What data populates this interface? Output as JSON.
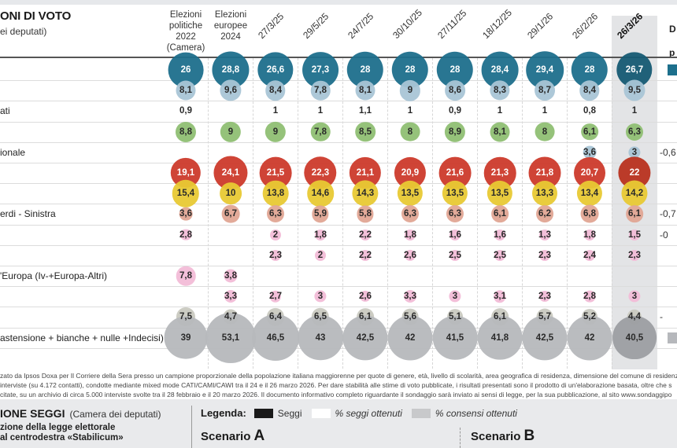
{
  "header": {
    "title": "ONI DI VOTO",
    "subtitle": "ei deputati)",
    "static_columns": [
      {
        "lines": [
          "Elezioni",
          "politiche",
          "2022",
          "(Camera)"
        ]
      },
      {
        "lines": [
          "Elezioni",
          "europee",
          "2024"
        ]
      }
    ],
    "date_columns": [
      "27/3/25",
      "29/5/25",
      "24/7/25",
      "30/10/25",
      "27/11/25",
      "18/12/25",
      "29/1/26",
      "26/2/26",
      "26/3/26"
    ],
    "highlighted_column": "26/3/26",
    "diff_header": [
      "D",
      "p"
    ]
  },
  "colors": {
    "fdi": "#1d6f8c",
    "fi": "#a9c5d6",
    "lega": "#8fbf73",
    "fn": "#a9c5d6",
    "pd": "#cc3a2b",
    "m5s": "#e8c934",
    "avs": "#e0a593",
    "small": "#f2bcd7",
    "altri": "#c9c9c0",
    "nonvoto": "#b6b8bc",
    "highlight_bg": "#e3e4e6"
  },
  "chart_data": {
    "type": "table",
    "title": "INTENZIONI DI VOTO (Camera dei deputati)",
    "columns": [
      "Elezioni politiche 2022 (Camera)",
      "Elezioni europee 2024",
      "27/3/25",
      "29/5/25",
      "24/7/25",
      "30/10/25",
      "27/11/25",
      "18/12/25",
      "29/1/26",
      "26/2/26",
      "26/3/26"
    ],
    "rows": [
      {
        "label": "",
        "color_key": "fdi",
        "values": [
          26,
          28.8,
          26.6,
          27.3,
          28,
          28,
          28,
          28.4,
          29.4,
          28,
          26.7
        ],
        "diff": "–"
      },
      {
        "label": "",
        "color_key": "fi",
        "values": [
          8.1,
          9.6,
          8.4,
          7.8,
          8.1,
          9,
          8.6,
          8.3,
          8.7,
          8.4,
          9.5
        ],
        "diff": ""
      },
      {
        "label": "ati",
        "color_key": "none",
        "values": [
          0.9,
          null,
          1,
          1,
          1.1,
          1,
          0.9,
          1,
          1,
          0.8,
          1
        ],
        "diff": ""
      },
      {
        "label": "",
        "color_key": "lega",
        "values": [
          8.8,
          9,
          9,
          7.8,
          8.5,
          8,
          8.9,
          8.1,
          8,
          6.1,
          6.3
        ],
        "diff": ""
      },
      {
        "label": "ionale",
        "color_key": "fn",
        "values": [
          null,
          null,
          null,
          null,
          null,
          null,
          null,
          null,
          null,
          3.6,
          3
        ],
        "diff": "-0,6"
      },
      {
        "label": "",
        "color_key": "pd",
        "values": [
          19.1,
          24.1,
          21.5,
          22.3,
          21.1,
          20.9,
          21.6,
          21.3,
          21.8,
          20.7,
          22
        ],
        "diff": ""
      },
      {
        "label": "",
        "color_key": "m5s",
        "values": [
          15.4,
          10,
          13.8,
          14.6,
          14.3,
          13.5,
          13.5,
          13.5,
          13.3,
          13.4,
          14.2
        ],
        "diff": ""
      },
      {
        "label": "erdi - Sinistra",
        "color_key": "avs",
        "values": [
          3.6,
          6.7,
          6.3,
          5.9,
          5.8,
          6.3,
          6.3,
          6.1,
          6.2,
          6.8,
          6.1
        ],
        "diff": "-0,7"
      },
      {
        "label": "",
        "color_key": "small",
        "values": [
          2.8,
          null,
          2,
          1.8,
          2.2,
          1.8,
          1.6,
          1.6,
          1.3,
          1.8,
          1.5
        ],
        "diff": "-0"
      },
      {
        "label": "",
        "color_key": "small",
        "values": [
          null,
          null,
          2.3,
          2,
          2.2,
          2.6,
          2.5,
          2.5,
          2.3,
          2.4,
          2.3
        ],
        "diff": ""
      },
      {
        "label": "'Europa (Iv-+Europa-Altri)",
        "color_key": "small",
        "values": [
          7.8,
          3.8,
          null,
          null,
          null,
          null,
          null,
          null,
          null,
          null,
          null
        ],
        "diff": ""
      },
      {
        "label": "",
        "color_key": "small",
        "values": [
          null,
          3.3,
          2.7,
          3,
          2.6,
          3.3,
          3,
          3.1,
          2.3,
          2.8,
          3
        ],
        "diff": ""
      },
      {
        "label": "",
        "color_key": "altri",
        "values": [
          7.5,
          4.7,
          6.4,
          6.5,
          6.1,
          5.6,
          5.1,
          6.1,
          5.7,
          5.2,
          4.4
        ],
        "diff": "-"
      },
      {
        "label": "astensione + bianche + nulle +Indecisi)",
        "color_key": "nonvoto",
        "values": [
          39,
          53.1,
          46.5,
          43,
          42.5,
          42,
          41.5,
          41.8,
          42.5,
          42,
          40.5
        ],
        "diff": "–"
      }
    ]
  },
  "footnote": [
    "zato da Ipsos Doxa per Il Corriere della Sera presso un campione proporzionale della popolazione italiana maggiorenne per quote di genere, età, livello di scolarità, area geografica di residenza, dimensione del comune di residenza",
    "interviste (su 4.172 contatti), condotte mediante mixed mode CATI/CAMI/CAWI tra il 24 e il 26 marzo  2026. Per dare stabilità alle stime di voto pubblicate, i risultati presentati sono il prodotto di un'elaborazione basata, oltre che s",
    "citate, su un archivio di circa 5.000  interviste svolte tra il 28 febbraio e il 20 marzo  2026. Il documento informativo completo riguardante il sondaggio sarà inviato ai sensi di legge, per la sua pubblicazione, al sito www.sondaggipo"
  ],
  "seats": {
    "title": "IONE SEGGI",
    "title_note": "(Camera dei deputati)",
    "subtitle_lines": [
      "zione della legge elettorale",
      "al centrodestra «Stabilicum»"
    ],
    "legend_label": "Legenda:",
    "legend_items": [
      {
        "label": "Seggi",
        "color": "#1a1a1a",
        "italic": false
      },
      {
        "label": "% seggi ottenuti",
        "color": "#ffffff",
        "italic": true
      },
      {
        "label": "% consensi ottenuti",
        "color": "#c8c9cb",
        "italic": true
      }
    ],
    "scenario_a": {
      "prefix": "Scenario ",
      "letter": "A"
    },
    "scenario_b": {
      "prefix": "Scenario ",
      "letter": "B"
    }
  }
}
